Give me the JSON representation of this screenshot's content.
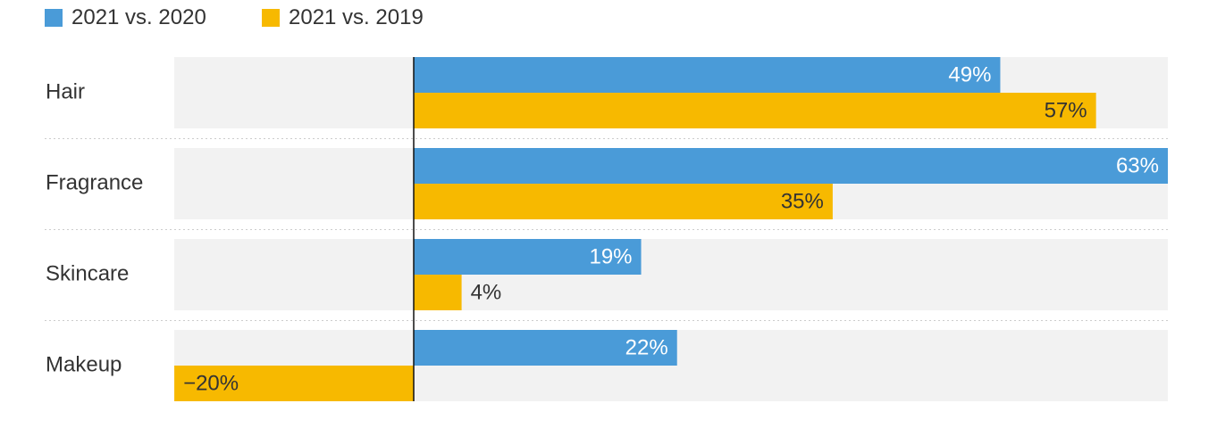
{
  "chart_data": {
    "type": "bar",
    "orientation": "horizontal",
    "categories": [
      "Hair",
      "Fragrance",
      "Skincare",
      "Makeup"
    ],
    "series": [
      {
        "name": "2021 vs. 2020",
        "color": "#4a9bd8",
        "values": [
          49,
          63,
          19,
          22
        ],
        "labels": [
          "49%",
          "63%",
          "19%",
          "22%"
        ]
      },
      {
        "name": "2021 vs. 2019",
        "color": "#f7b900",
        "values": [
          57,
          35,
          4,
          -20
        ],
        "labels": [
          "57%",
          "35%",
          "4%",
          "−20%"
        ]
      }
    ],
    "xlim": [
      -20,
      63
    ],
    "unit": "%",
    "legend_position": "top-left",
    "grid": false
  },
  "colors": {
    "panel_background": "#f2f2f2",
    "zero_line": "#111111",
    "separator": "#cccccc",
    "label_on_bar": "#ffffff",
    "label_outside": "#333333"
  }
}
